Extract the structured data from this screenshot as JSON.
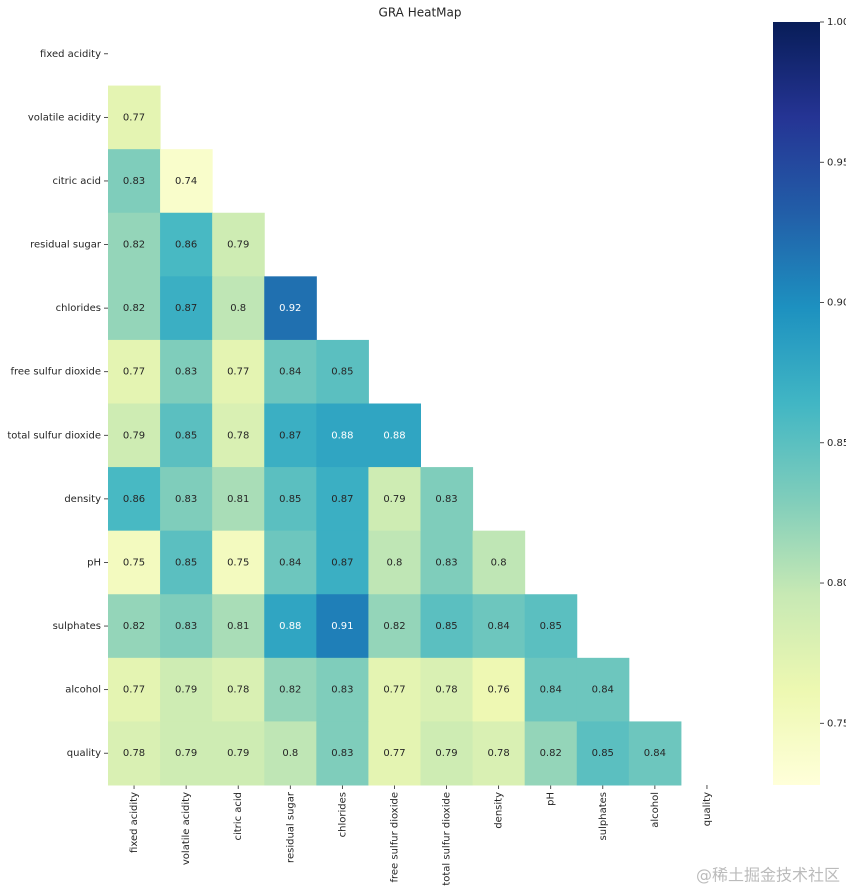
{
  "chart_data": {
    "type": "heatmap",
    "title": "GRA HeatMap",
    "categories": [
      "fixed acidity",
      "volatile acidity",
      "citric acid",
      "residual sugar",
      "chlorides",
      "free sulfur dioxide",
      "total sulfur dioxide",
      "density",
      "pH",
      "sulphates",
      "alcohol",
      "quality"
    ],
    "values": [
      [
        null,
        null,
        null,
        null,
        null,
        null,
        null,
        null,
        null,
        null,
        null,
        null
      ],
      [
        0.77,
        null,
        null,
        null,
        null,
        null,
        null,
        null,
        null,
        null,
        null,
        null
      ],
      [
        0.83,
        0.74,
        null,
        null,
        null,
        null,
        null,
        null,
        null,
        null,
        null,
        null
      ],
      [
        0.82,
        0.86,
        0.79,
        null,
        null,
        null,
        null,
        null,
        null,
        null,
        null,
        null
      ],
      [
        0.82,
        0.87,
        0.8,
        0.92,
        null,
        null,
        null,
        null,
        null,
        null,
        null,
        null
      ],
      [
        0.77,
        0.83,
        0.77,
        0.84,
        0.85,
        null,
        null,
        null,
        null,
        null,
        null,
        null
      ],
      [
        0.79,
        0.85,
        0.78,
        0.87,
        0.88,
        0.88,
        null,
        null,
        null,
        null,
        null,
        null
      ],
      [
        0.86,
        0.83,
        0.81,
        0.85,
        0.87,
        0.79,
        0.83,
        null,
        null,
        null,
        null,
        null
      ],
      [
        0.75,
        0.85,
        0.75,
        0.84,
        0.87,
        0.8,
        0.83,
        0.8,
        null,
        null,
        null,
        null
      ],
      [
        0.82,
        0.83,
        0.81,
        0.88,
        0.91,
        0.82,
        0.85,
        0.84,
        0.85,
        null,
        null,
        null
      ],
      [
        0.77,
        0.79,
        0.78,
        0.82,
        0.83,
        0.77,
        0.78,
        0.76,
        0.84,
        0.84,
        null,
        null
      ],
      [
        0.78,
        0.79,
        0.79,
        0.8,
        0.83,
        0.77,
        0.79,
        0.78,
        0.82,
        0.85,
        0.84,
        null
      ]
    ],
    "colormap": "YlGnBu",
    "clim": [
      0.728,
      1.0
    ],
    "cticks": [
      0.75,
      {
        "value": 0.8,
        "label": "0.80"
      },
      0.85,
      {
        "value": 0.9,
        "label": "0.90"
      },
      0.95,
      {
        "value": 1.0,
        "label": "1.00"
      }
    ]
  },
  "watermark": "@稀土掘金技术社区"
}
